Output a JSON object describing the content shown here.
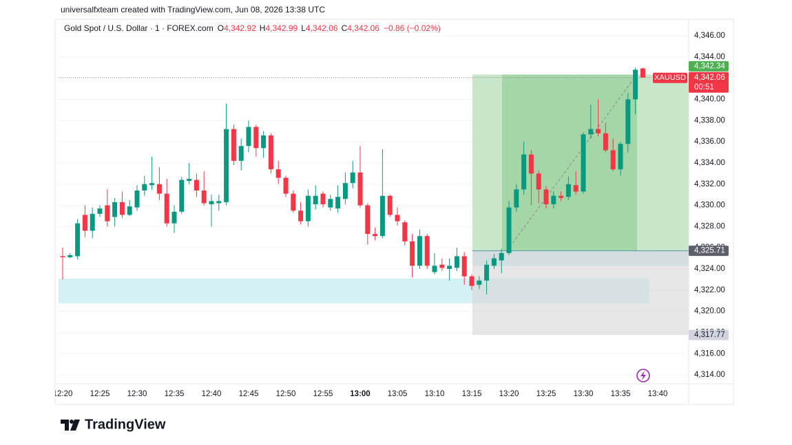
{
  "header": {
    "attribution": "universalfxteam created with TradingView.com, Jun 08, 2026 13:38 UTC"
  },
  "chart_data": {
    "type": "candlestick",
    "title": "Gold Spot / U.S. Dollar · 1 · FOREX.com",
    "legend_values": [
      {
        "key": "O",
        "text": "4,342.92"
      },
      {
        "key": "H",
        "text": "4,342.99"
      },
      {
        "key": "L",
        "text": "4,342.06"
      },
      {
        "key": "C",
        "text": "4,342.06"
      }
    ],
    "change": "−0.86 (−0.02%)",
    "categories": [
      "12:20",
      null,
      null,
      null,
      null,
      "12:25",
      null,
      null,
      null,
      null,
      "12:30",
      null,
      null,
      null,
      null,
      "12:35",
      null,
      null,
      null,
      null,
      "12:40",
      null,
      null,
      null,
      null,
      "12:45",
      null,
      null,
      null,
      null,
      "12:50",
      null,
      null,
      null,
      null,
      "12:55",
      null,
      null,
      null,
      null,
      "13:00",
      null,
      null,
      null,
      null,
      "13:05",
      null,
      null,
      null,
      null,
      "13:10",
      null,
      null,
      null,
      null,
      "13:15",
      null,
      null,
      null,
      null,
      "13:20",
      null,
      null,
      null,
      null,
      "13:25",
      null,
      null,
      null,
      null,
      "13:30",
      null,
      null,
      null,
      null,
      "13:35",
      null,
      null,
      null,
      null,
      "13:40"
    ],
    "open": [
      4325.2,
      4325.1,
      4325.2,
      4329.1,
      4327.6,
      4329.2,
      4330,
      4328.9,
      4330.3,
      4329.1,
      4329.8,
      4331.4,
      4331.9,
      4332,
      4331.1,
      4328.3,
      4329.4,
      4332.3,
      4332.4,
      4331.4,
      4330.1,
      4330.2,
      4330.3,
      4337.2,
      4334.2,
      4335.6,
      4337.4,
      4335.4,
      4336.6,
      4333.4,
      4332.6,
      4331.1,
      4329.5,
      4328.5,
      4330.1,
      4331.1,
      4329.8,
      4329.7,
      4330.6,
      4332.1,
      4333.1,
      4330,
      4327.3,
      4327.1,
      4330.9,
      4329.1,
      4328.4,
      4326.6,
      4324.3,
      4327.1,
      4323.7,
      4324.4,
      4324,
      4324.1,
      4325.2,
      4323.3,
      4322.5,
      4322.9,
      4324.3,
      4324.8,
      4325.5,
      4329.8,
      4331.5,
      4334.8,
      4333,
      4331.5,
      4330.1,
      4330.9,
      4330.8,
      4331.9,
      4331.3,
      4336.7,
      4337.2,
      4336.8,
      4335.2,
      4333.4,
      4335.8,
      4340,
      4342.92,
      null,
      null
    ],
    "high": [
      4326,
      4325.5,
      4328.7,
      4330,
      4329.8,
      4330,
      4331.5,
      4330.7,
      4331.3,
      4330.5,
      4331.9,
      4332.8,
      4334.6,
      4333.6,
      4332.5,
      4330,
      4332.7,
      4334,
      4333,
      4333.2,
      4331,
      4331,
      4339.6,
      4337.6,
      4336.3,
      4338,
      4337.6,
      4337,
      4336.8,
      4334.2,
      4332.8,
      4331.4,
      4330.3,
      4331.5,
      4331.9,
      4331.3,
      4331,
      4331.9,
      4333.1,
      4334.2,
      4335.6,
      4330.2,
      4327.9,
      4335.3,
      4331,
      4329.8,
      4328.6,
      4327.3,
      4327.7,
      4327.3,
      4325.5,
      4325,
      4325,
      4326,
      4325.6,
      4323.5,
      4323.3,
      4324.8,
      4325.4,
      4325.9,
      4330.4,
      4332,
      4336,
      4335.2,
      4333.3,
      4331.8,
      4331.3,
      4331.3,
      4332.7,
      4333.2,
      4336.9,
      4339.5,
      4340,
      4337.8,
      4336.3,
      4336,
      4340.6,
      4343,
      4342.99,
      null,
      null
    ],
    "low": [
      4323,
      4325,
      4324.9,
      4327,
      4326.9,
      4328.9,
      4328,
      4328,
      4328.8,
      4329,
      4329.5,
      4330.9,
      4331.5,
      4330.5,
      4328,
      4327.4,
      4329.2,
      4332,
      4330.8,
      4330,
      4328,
      4329.5,
      4330,
      4333.8,
      4333.3,
      4335,
      4334.6,
      4334.5,
      4333,
      4332,
      4330.8,
      4329.3,
      4328.2,
      4328,
      4329.6,
      4329.8,
      4329.5,
      4329.3,
      4330.1,
      4331.6,
      4329.8,
      4326.3,
      4326.7,
      4326.9,
      4328.9,
      4328.1,
      4326.2,
      4323.2,
      4324,
      4324,
      4323.5,
      4323.8,
      4322.9,
      4323.8,
      4322.5,
      4322,
      4322.1,
      4321.6,
      4324,
      4323.6,
      4325.3,
      4329.4,
      4331,
      4330,
      4330.2,
      4329.7,
      4329.7,
      4330.4,
      4330.5,
      4331,
      4331.1,
      4336.3,
      4336.5,
      4335,
      4333.2,
      4332.8,
      4335,
      4338.6,
      4342.06,
      null,
      null
    ],
    "close": [
      4325.1,
      4325.3,
      4328.3,
      4327.6,
      4329.2,
      4329.7,
      4328.5,
      4330.3,
      4329.1,
      4329.9,
      4331.4,
      4332,
      4332.1,
      4331.1,
      4328.3,
      4329.4,
      4332.4,
      4332.5,
      4331.4,
      4330.2,
      4330.4,
      4330.4,
      4337.2,
      4334.2,
      4335.6,
      4337.4,
      4335.4,
      4336.6,
      4333.4,
      4332.6,
      4331.1,
      4329.5,
      4328.5,
      4330.9,
      4330.9,
      4330.1,
      4330.6,
      4330.8,
      4332.1,
      4333.1,
      4330,
      4327.3,
      4327.1,
      4330.9,
      4329.1,
      4328.5,
      4326.6,
      4324.3,
      4327.1,
      4324.3,
      4324.3,
      4324.1,
      4324.3,
      4325.2,
      4323.3,
      4322.4,
      4322.9,
      4324.4,
      4325,
      4325.5,
      4329.8,
      4331.5,
      4334.8,
      4333,
      4331.5,
      4330.1,
      4330.9,
      4330.7,
      4332,
      4331.3,
      4336.7,
      4337.2,
      4336.8,
      4335.2,
      4333.4,
      4335.8,
      4340,
      4342.8,
      4342.06,
      null,
      null
    ],
    "up_color": "#089981",
    "down_color": "#f23645",
    "ylim": [
      4313.16,
      4347.43
    ],
    "yticks": [
      {
        "value": 4314,
        "label": "4,314.00"
      },
      {
        "value": 4316,
        "label": "4,316.00"
      },
      {
        "value": 4318,
        "label": "4,318.00"
      },
      {
        "value": 4320,
        "label": "4,320.00"
      },
      {
        "value": 4322,
        "label": "4,322.00"
      },
      {
        "value": 4324,
        "label": "4,324.00"
      },
      {
        "value": 4326,
        "label": "4,326.00"
      },
      {
        "value": 4328,
        "label": "4,328.00"
      },
      {
        "value": 4330,
        "label": "4,330.00"
      },
      {
        "value": 4332,
        "label": "4,332.00"
      },
      {
        "value": 4334,
        "label": "4,334.00"
      },
      {
        "value": 4336,
        "label": "4,336.00"
      },
      {
        "value": 4338,
        "label": "4,338.00"
      },
      {
        "value": 4340,
        "label": "4,340.00"
      },
      {
        "value": 4342,
        "label": "4,342.00"
      },
      {
        "value": 4344,
        "label": "4,344.00"
      },
      {
        "value": 4346,
        "label": "4,346.00"
      }
    ],
    "grid": true,
    "symbol": "XAUUSD",
    "countdown": "00:51",
    "last_price": {
      "value": 4342.06,
      "label": "4,342.06"
    },
    "position": {
      "target": {
        "value": 4342.34,
        "label": "4,342.34"
      },
      "entry": {
        "value": 4325.71,
        "label": "4,325.71"
      },
      "stop": {
        "value": 4317.77,
        "label": "4,317.77"
      }
    },
    "zone": {
      "low": 4320.76,
      "high": 4323.09
    }
  },
  "footer": {
    "brand": "TradingView"
  }
}
